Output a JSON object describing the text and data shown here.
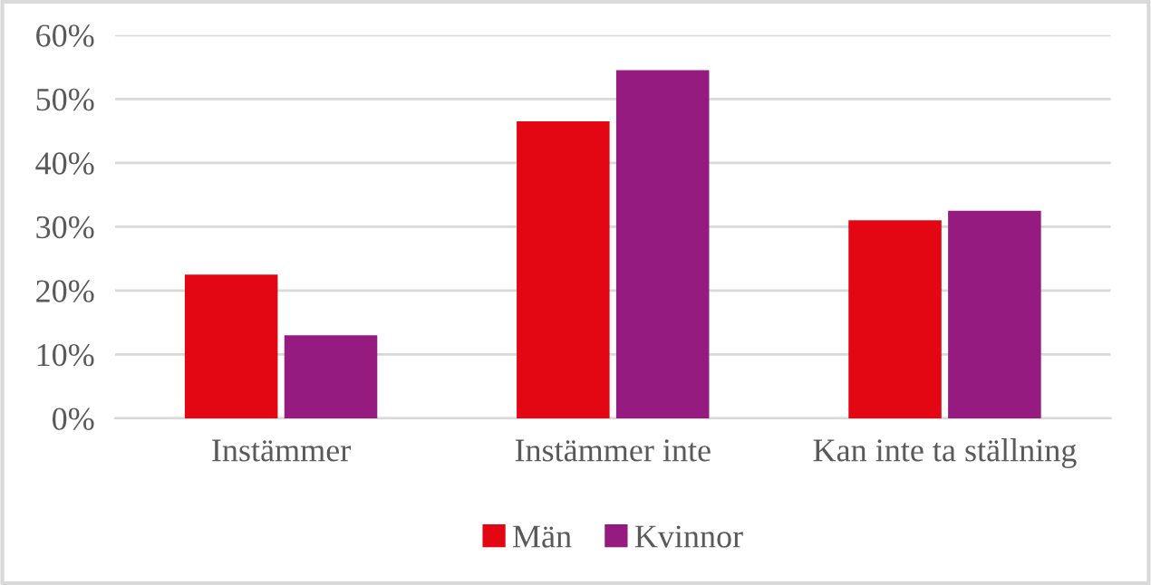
{
  "chart_data": {
    "type": "bar",
    "categories": [
      "Instämmer",
      "Instämmer inte",
      "Kan inte ta ställning"
    ],
    "series": [
      {
        "name": "Män",
        "color": "#e30613",
        "values": [
          22.5,
          46.5,
          31
        ]
      },
      {
        "name": "Kvinnor",
        "color": "#951b81",
        "values": [
          13,
          54.5,
          32.5
        ]
      }
    ],
    "ylim": [
      0,
      60
    ],
    "yticks": [
      {
        "value": 0,
        "label": "0%"
      },
      {
        "value": 10,
        "label": "10%"
      },
      {
        "value": 20,
        "label": "20%"
      },
      {
        "value": 30,
        "label": "30%"
      },
      {
        "value": 40,
        "label": "40%"
      },
      {
        "value": 50,
        "label": "50%"
      },
      {
        "value": 60,
        "label": "60%"
      }
    ],
    "grid": "y",
    "legend": "bottom"
  }
}
